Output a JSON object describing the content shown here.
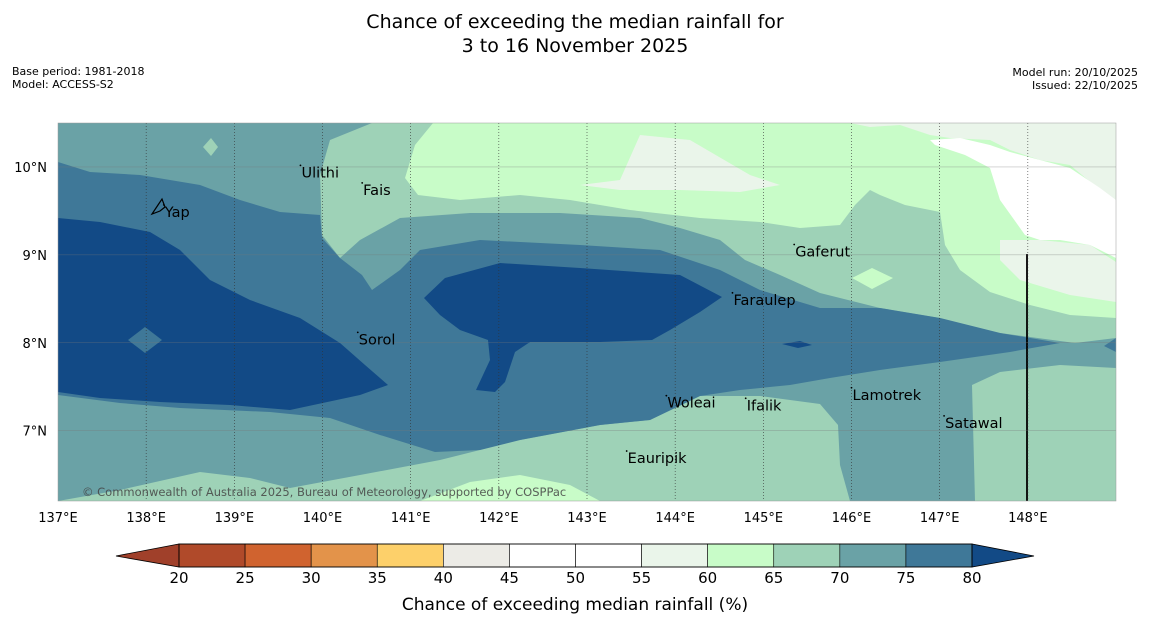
{
  "title": {
    "line1": "Chance of exceeding the median rainfall for",
    "line2": "3 to 16 November 2025"
  },
  "meta": {
    "base_period": "Base period: 1981-2018",
    "model": "Model: ACCESS-S2",
    "model_run": "Model run: 20/10/2025",
    "issued": "Issued: 22/10/2025"
  },
  "map": {
    "lon_range": [
      137,
      149
    ],
    "lat_range": [
      6.2,
      10.5
    ],
    "lon_ticks": [
      "137°E",
      "138°E",
      "139°E",
      "140°E",
      "141°E",
      "142°E",
      "143°E",
      "144°E",
      "145°E",
      "146°E",
      "147°E",
      "148°E"
    ],
    "lat_ticks": [
      "10°N",
      "9°N",
      "8°N",
      "7°N"
    ],
    "places": [
      {
        "name": "Yap",
        "lon": 138.2,
        "lat": 9.5
      },
      {
        "name": "Ulithi",
        "lon": 139.75,
        "lat": 9.95
      },
      {
        "name": "Fais",
        "lon": 140.45,
        "lat": 9.75
      },
      {
        "name": "Gaferut",
        "lon": 145.35,
        "lat": 9.05
      },
      {
        "name": "Faraulep",
        "lon": 144.65,
        "lat": 8.5
      },
      {
        "name": "Sorol",
        "lon": 140.4,
        "lat": 8.05
      },
      {
        "name": "Lamotrek",
        "lon": 146.0,
        "lat": 7.42
      },
      {
        "name": "Woleai",
        "lon": 143.9,
        "lat": 7.33
      },
      {
        "name": "Ifalik",
        "lon": 144.8,
        "lat": 7.3
      },
      {
        "name": "Satawal",
        "lon": 147.05,
        "lat": 7.1
      },
      {
        "name": "Eauripik",
        "lon": 143.45,
        "lat": 6.7
      }
    ],
    "copyright": "© Commonwealth of Australia 2025, Bureau of Meteorology, supported by COSPPac"
  },
  "legend": {
    "title": "Chance of exceeding median rainfall (%)",
    "ticks": [
      "20",
      "25",
      "30",
      "35",
      "40",
      "45",
      "50",
      "55",
      "60",
      "65",
      "70",
      "75",
      "80"
    ],
    "low_extend_color": "#a0402a",
    "high_extend_color": "#124a86",
    "colors": [
      "#b04a2a",
      "#d0632f",
      "#e3934a",
      "#fdd06a",
      "#ecebe6",
      "#ffffff",
      "#ffffff",
      "#eaf5ea",
      "#c8fcc8",
      "#9ed2b7",
      "#6aa2a6",
      "#3f7898"
    ]
  },
  "colors": {
    "c55": "#eaf5ea",
    "c60": "#c8fcc8",
    "c65": "#9ed2b7",
    "c70": "#6aa2a6",
    "c75": "#3f7898",
    "c80": "#124a86"
  }
}
